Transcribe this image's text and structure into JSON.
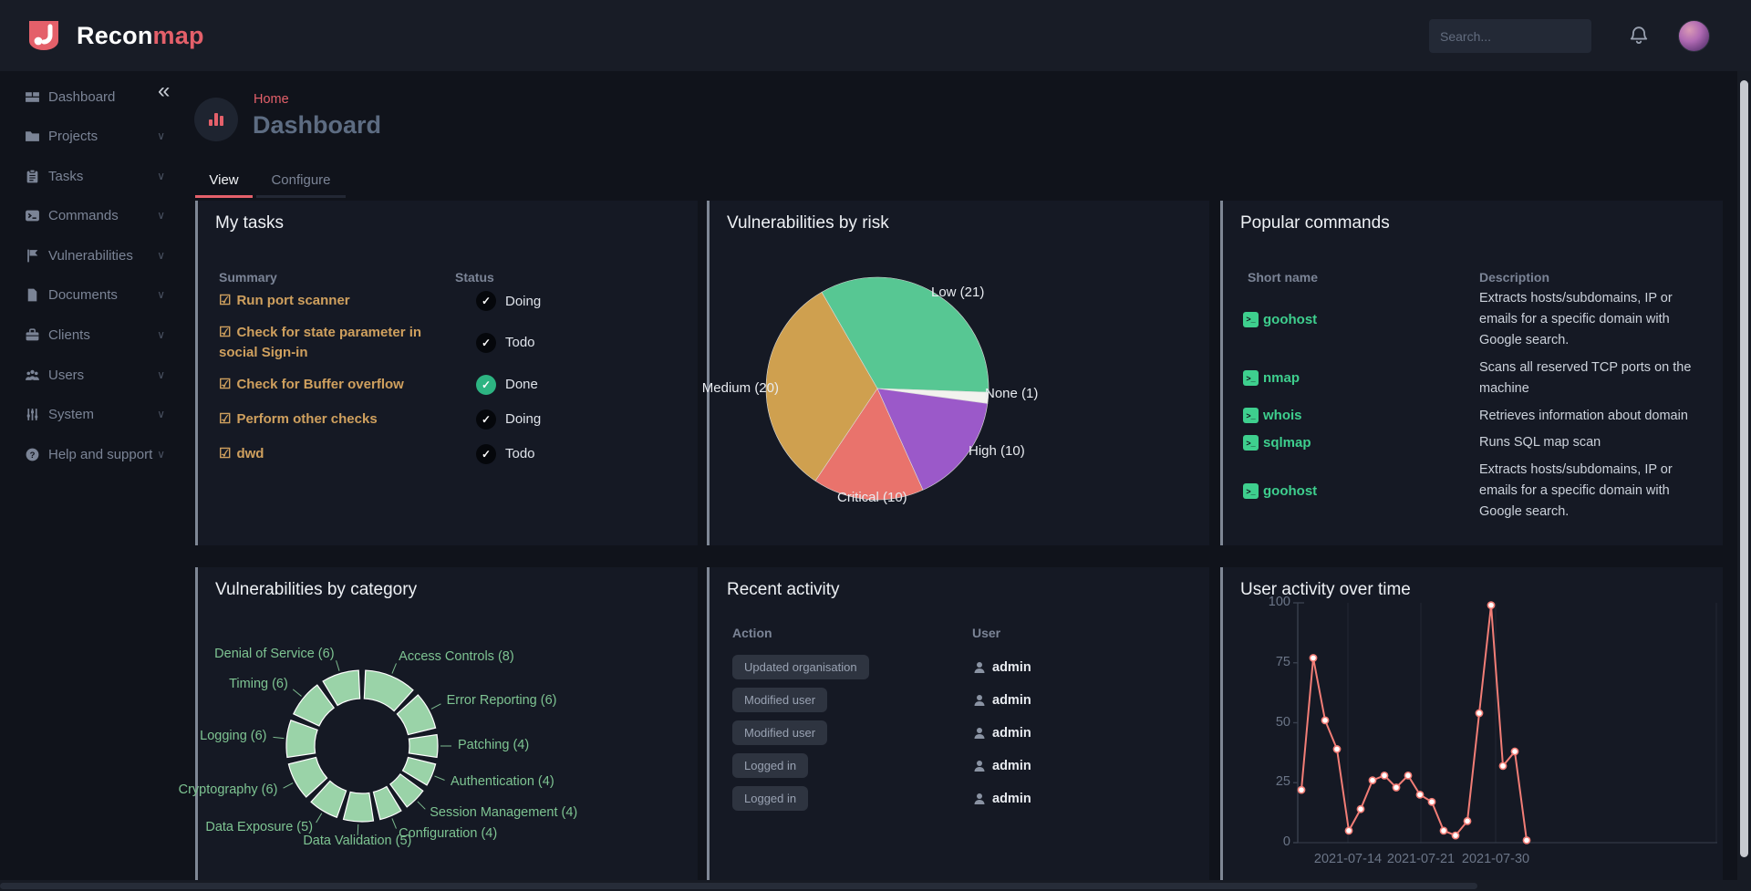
{
  "topbar": {
    "brand_recon": "Recon",
    "brand_map": "map",
    "search_placeholder": "Search..."
  },
  "sidebar": {
    "items": [
      {
        "label": "Dashboard",
        "icon": "dashboard",
        "chevron": false
      },
      {
        "label": "Projects",
        "icon": "projects",
        "chevron": true
      },
      {
        "label": "Tasks",
        "icon": "tasks",
        "chevron": true
      },
      {
        "label": "Commands",
        "icon": "commands",
        "chevron": true
      },
      {
        "label": "Vulnerabilities",
        "icon": "vulnerabilities",
        "chevron": true
      },
      {
        "label": "Documents",
        "icon": "documents",
        "chevron": true
      },
      {
        "label": "Clients",
        "icon": "clients",
        "chevron": true
      },
      {
        "label": "Users",
        "icon": "users",
        "chevron": true
      },
      {
        "label": "System",
        "icon": "system",
        "chevron": true
      },
      {
        "label": "Help and support",
        "icon": "help",
        "chevron": true
      }
    ]
  },
  "header": {
    "breadcrumb": "Home",
    "title": "Dashboard",
    "tabs": [
      {
        "label": "View",
        "active": true
      },
      {
        "label": "Configure",
        "active": false
      }
    ]
  },
  "cards": {
    "my_tasks": {
      "title": "My tasks",
      "columns": [
        "Summary",
        "Status"
      ],
      "rows": [
        {
          "summary": "Run port scanner",
          "status": "Doing"
        },
        {
          "summary": "Check for state parameter in social Sign-in",
          "status": "Todo"
        },
        {
          "summary": "Check for Buffer overflow",
          "status": "Done"
        },
        {
          "summary": "Perform other checks",
          "status": "Doing"
        },
        {
          "summary": "dwd",
          "status": "Todo"
        }
      ]
    },
    "vuln_by_risk": {
      "title": "Vulnerabilities by risk"
    },
    "popular_commands": {
      "title": "Popular commands",
      "columns": [
        "Short name",
        "Description"
      ],
      "rows": [
        {
          "name": "goohost",
          "description": "Extracts hosts/subdomains, IP or emails for a specific domain with Google search."
        },
        {
          "name": "nmap",
          "description": "Scans all reserved TCP ports on the machine"
        },
        {
          "name": "whois",
          "description": "Retrieves information about domain"
        },
        {
          "name": "sqlmap",
          "description": "Runs SQL map scan"
        },
        {
          "name": "goohost",
          "description": "Extracts hosts/subdomains, IP or emails for a specific domain with Google search."
        }
      ]
    },
    "vuln_by_category": {
      "title": "Vulnerabilities by category"
    },
    "recent_activity": {
      "title": "Recent activity",
      "columns": [
        "Action",
        "User"
      ],
      "rows": [
        {
          "action": "Updated organisation",
          "user": "admin"
        },
        {
          "action": "Modified user",
          "user": "admin"
        },
        {
          "action": "Modified user",
          "user": "admin"
        },
        {
          "action": "Logged in",
          "user": "admin"
        },
        {
          "action": "Logged in",
          "user": "admin"
        }
      ]
    },
    "user_activity": {
      "title": "User activity over time"
    }
  },
  "chart_data": [
    {
      "id": "vulnerabilities_by_risk",
      "type": "pie",
      "title": "Vulnerabilities by risk",
      "start_angle": -30,
      "segments": [
        {
          "label": "Low (21)",
          "name": "Low",
          "value": 21,
          "color": "#57c793"
        },
        {
          "label": "None (1)",
          "name": "None",
          "value": 1,
          "color": "#f2f2ee"
        },
        {
          "label": "High (10)",
          "name": "High",
          "value": 10,
          "color": "#9b59c9"
        },
        {
          "label": "Critical (10)",
          "name": "Critical",
          "value": 10,
          "color": "#e9736c"
        },
        {
          "label": "Medium (20)",
          "name": "Medium",
          "value": 20,
          "color": "#cfa04f"
        }
      ]
    },
    {
      "id": "vulnerabilities_by_category",
      "type": "pie",
      "subtype": "donut",
      "title": "Vulnerabilities by category",
      "color": "#9ad3a8",
      "label_color": "#7ec492",
      "segments": [
        {
          "label": "Access Controls (8)",
          "value": 8
        },
        {
          "label": "Error Reporting (6)",
          "value": 6
        },
        {
          "label": "Patching (4)",
          "value": 4
        },
        {
          "label": "Authentication (4)",
          "value": 4
        },
        {
          "label": "Session Management (4)",
          "value": 4
        },
        {
          "label": "Configuration (4)",
          "value": 4
        },
        {
          "label": "Data Validation (5)",
          "value": 5
        },
        {
          "label": "Data Exposure (5)",
          "value": 5
        },
        {
          "label": "Cryptography (6)",
          "value": 6
        },
        {
          "label": "Logging (6)",
          "value": 6
        },
        {
          "label": "Timing (6)",
          "value": 6
        },
        {
          "label": "Denial of Service (6)",
          "value": 6
        }
      ]
    },
    {
      "id": "user_activity_over_time",
      "type": "line",
      "title": "User activity over time",
      "color": "#f27d76",
      "ylim": [
        0,
        100
      ],
      "y_ticks": [
        100,
        75,
        50,
        25,
        0
      ],
      "x_ticks": [
        "2021-07-14",
        "2021-07-21",
        "2021-07-30"
      ],
      "values": [
        22,
        77,
        51,
        39,
        5,
        14,
        26,
        28,
        23,
        28,
        20,
        17,
        5,
        3,
        9,
        54,
        99,
        32,
        38,
        1
      ]
    }
  ],
  "colors": {
    "accent_red": "#e4606a",
    "task_link_orange": "#cfa05e",
    "command_green": "#3ecf8e",
    "done_green": "#2db482",
    "donut_green": "#9ad3a8",
    "line_salmon": "#f27d76",
    "card_bg": "#151924",
    "page_bg": "#10131b"
  }
}
